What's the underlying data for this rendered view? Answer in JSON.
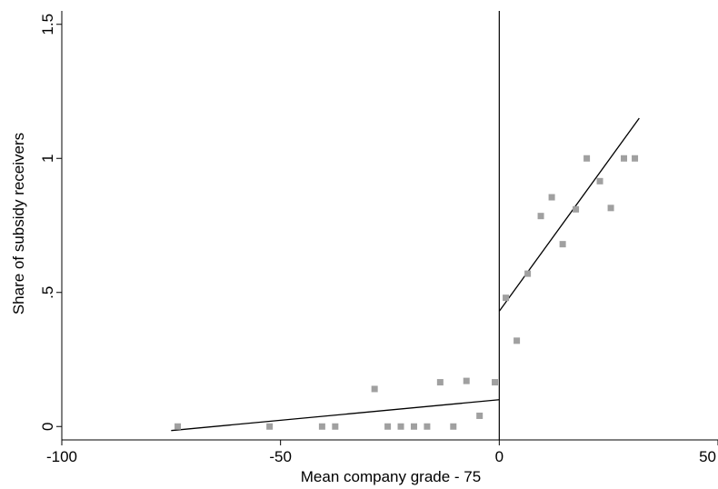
{
  "chart_data": {
    "type": "scatter",
    "title": "",
    "xlabel": "Mean company grade - 75",
    "ylabel": "Share of subsidy receivers",
    "xlim": [
      -100,
      50
    ],
    "ylim": [
      -0.05,
      1.55
    ],
    "xticks": [
      -100,
      -50,
      0,
      50
    ],
    "xtick_labels": [
      "-100",
      "-50",
      "0",
      "50"
    ],
    "yticks": [
      0,
      0.5,
      1,
      1.5
    ],
    "ytick_labels": [
      "0",
      ".5",
      "1",
      "1.5"
    ],
    "grid": false,
    "legend": "none",
    "cutoff": {
      "x": 0,
      "style": "vertical line"
    },
    "series": [
      {
        "type": "scatter",
        "color": "#a0a0a0",
        "points": [
          {
            "x": -73.5,
            "y": 0.0
          },
          {
            "x": -52.5,
            "y": 0.0
          },
          {
            "x": -40.5,
            "y": 0.0
          },
          {
            "x": -37.5,
            "y": 0.0
          },
          {
            "x": -28.5,
            "y": 0.14
          },
          {
            "x": -25.5,
            "y": 0.0
          },
          {
            "x": -22.5,
            "y": 0.0
          },
          {
            "x": -19.5,
            "y": 0.0
          },
          {
            "x": -16.5,
            "y": 0.0
          },
          {
            "x": -13.5,
            "y": 0.165
          },
          {
            "x": -10.5,
            "y": 0.0
          },
          {
            "x": -7.5,
            "y": 0.17
          },
          {
            "x": -4.5,
            "y": 0.04
          },
          {
            "x": -1.0,
            "y": 0.165
          },
          {
            "x": 1.5,
            "y": 0.48
          },
          {
            "x": 4.0,
            "y": 0.32
          },
          {
            "x": 6.5,
            "y": 0.57
          },
          {
            "x": 9.5,
            "y": 0.785
          },
          {
            "x": 12.0,
            "y": 0.855
          },
          {
            "x": 14.5,
            "y": 0.68
          },
          {
            "x": 17.5,
            "y": 0.81
          },
          {
            "x": 20.0,
            "y": 1.0
          },
          {
            "x": 23.0,
            "y": 0.915
          },
          {
            "x": 25.5,
            "y": 0.815
          },
          {
            "x": 28.5,
            "y": 1.0
          },
          {
            "x": 31.0,
            "y": 1.0
          }
        ]
      },
      {
        "type": "line",
        "color": "#000000",
        "segments": [
          [
            {
              "x": -75,
              "y": -0.015
            },
            {
              "x": 0,
              "y": 0.1
            }
          ],
          [
            {
              "x": 0,
              "y": 0.43
            },
            {
              "x": 32,
              "y": 1.15
            }
          ]
        ]
      }
    ]
  }
}
